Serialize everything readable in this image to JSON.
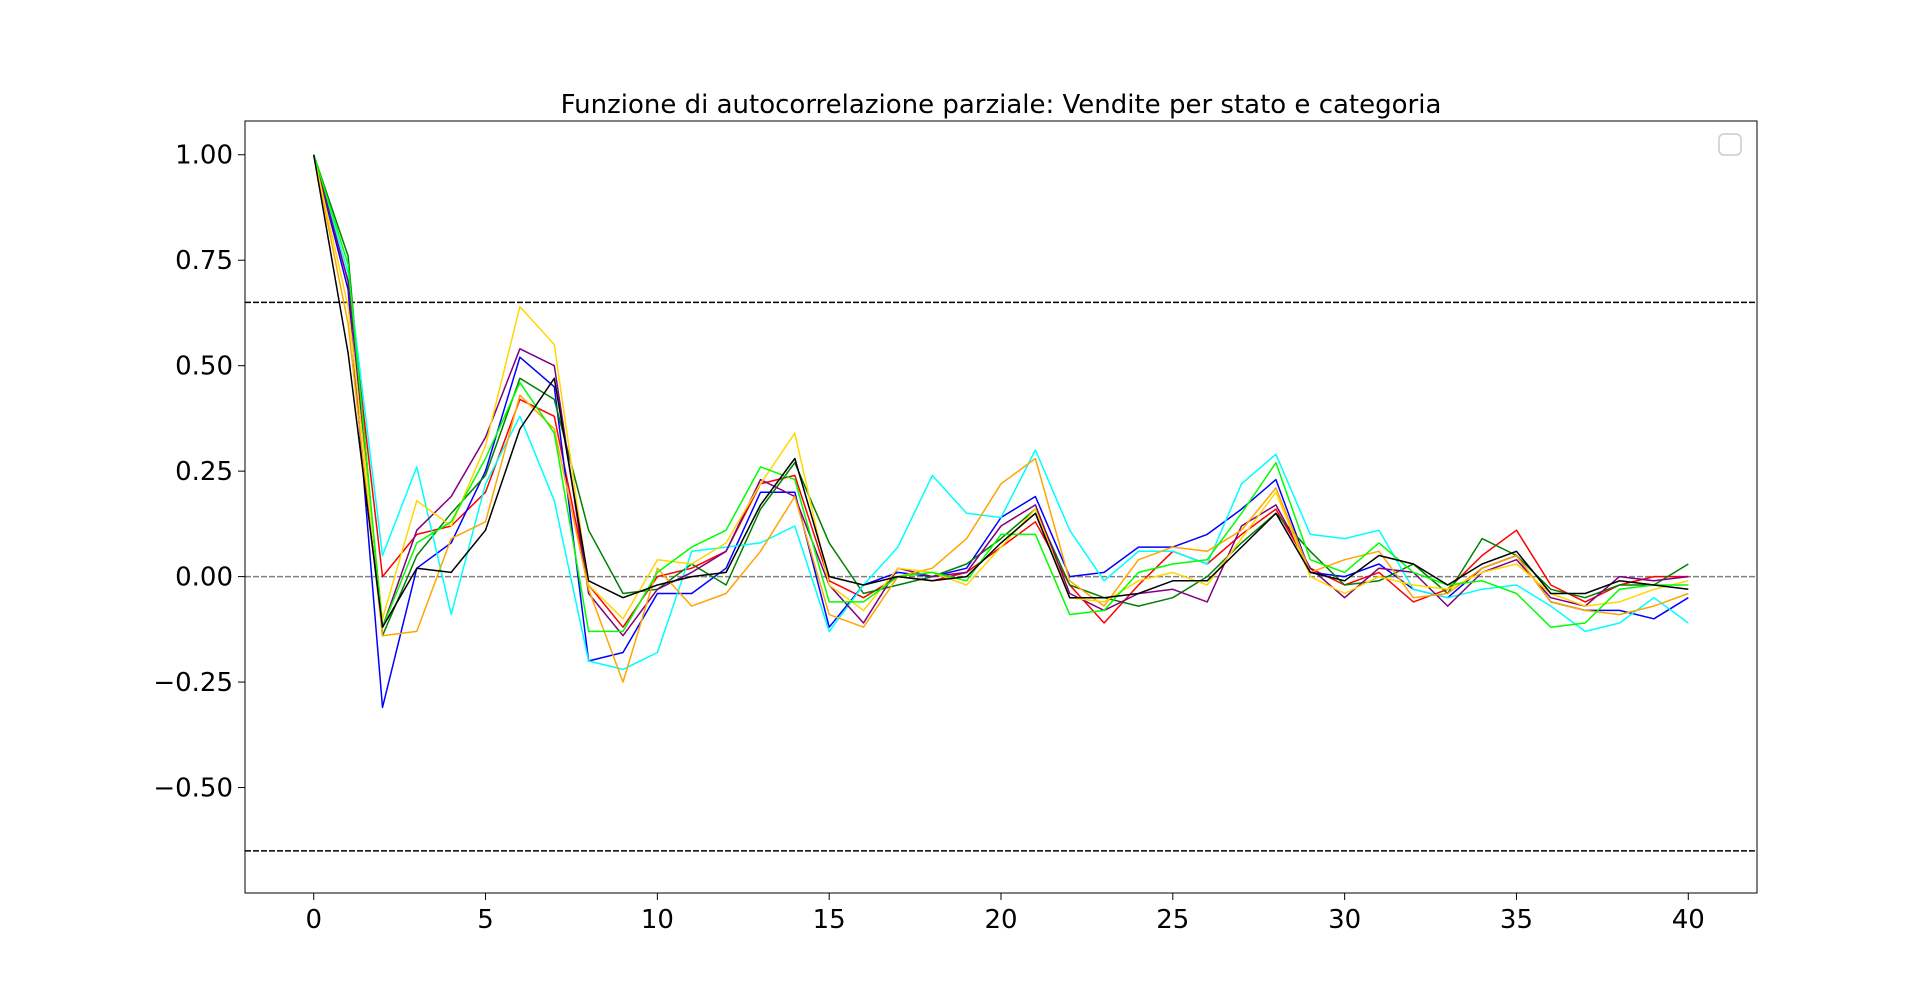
{
  "chart_data": {
    "type": "line",
    "title": "Funzione di autocorrelazione parziale: Vendite per stato e categoria",
    "xlabel": "",
    "ylabel": "",
    "xlim": [
      -2,
      42
    ],
    "ylim": [
      -0.75,
      1.08
    ],
    "xticks": [
      0,
      5,
      10,
      15,
      20,
      25,
      30,
      35,
      40
    ],
    "xtick_labels": [
      "0",
      "5",
      "10",
      "15",
      "20",
      "25",
      "30",
      "35",
      "40"
    ],
    "yticks": [
      1.0,
      0.75,
      0.5,
      0.25,
      0.0,
      -0.25,
      -0.5
    ],
    "ytick_labels": [
      "1.00",
      "0.75",
      "0.50",
      "0.25",
      "0.00",
      "−0.25",
      "−0.50"
    ],
    "grid": false,
    "legend": "top-right (empty)",
    "hlines": [
      {
        "y": 0.65,
        "style": "dashed",
        "color": "#000000"
      },
      {
        "y": -0.65,
        "style": "dashed",
        "color": "#000000"
      },
      {
        "y": 0.0,
        "style": "dashed",
        "color": "#808080"
      }
    ],
    "x": [
      0,
      1,
      2,
      3,
      4,
      5,
      6,
      7,
      8,
      9,
      10,
      11,
      12,
      13,
      14,
      15,
      16,
      17,
      18,
      19,
      20,
      21,
      22,
      23,
      24,
      25,
      26,
      27,
      28,
      29,
      30,
      31,
      32,
      33,
      34,
      35,
      36,
      37,
      38,
      39,
      40
    ],
    "series": [
      {
        "color": "#ff0000",
        "values": [
          1.0,
          0.7,
          0.0,
          0.1,
          0.12,
          0.2,
          0.42,
          0.38,
          -0.02,
          -0.12,
          0.0,
          0.02,
          0.06,
          0.22,
          0.24,
          -0.01,
          -0.05,
          0.0,
          -0.01,
          0.01,
          0.07,
          0.13,
          -0.02,
          -0.11,
          -0.02,
          0.06,
          0.03,
          0.1,
          0.16,
          0.02,
          -0.02,
          0.01,
          -0.06,
          -0.03,
          0.05,
          0.11,
          -0.02,
          -0.06,
          -0.02,
          0.0,
          0.0
        ]
      },
      {
        "color": "#0000ff",
        "values": [
          1.0,
          0.68,
          -0.31,
          0.02,
          0.08,
          0.25,
          0.52,
          0.45,
          -0.2,
          -0.18,
          -0.04,
          -0.04,
          0.02,
          0.2,
          0.2,
          -0.12,
          -0.02,
          0.01,
          0.0,
          0.02,
          0.14,
          0.19,
          0.0,
          0.01,
          0.07,
          0.07,
          0.1,
          0.16,
          0.23,
          0.01,
          0.0,
          0.03,
          -0.03,
          -0.05,
          0.02,
          0.05,
          -0.06,
          -0.08,
          -0.08,
          -0.1,
          -0.05
        ]
      },
      {
        "color": "#008000",
        "values": [
          1.0,
          0.76,
          -0.14,
          0.05,
          0.15,
          0.24,
          0.47,
          0.42,
          0.11,
          -0.04,
          -0.03,
          0.03,
          -0.02,
          0.16,
          0.27,
          0.08,
          -0.04,
          -0.02,
          0.0,
          0.03,
          0.09,
          0.16,
          -0.02,
          -0.05,
          -0.07,
          -0.05,
          0.0,
          0.08,
          0.15,
          0.06,
          -0.02,
          -0.01,
          0.03,
          -0.04,
          0.09,
          0.05,
          -0.03,
          -0.05,
          -0.02,
          -0.02,
          0.03
        ]
      },
      {
        "color": "#00ffff",
        "values": [
          1.0,
          0.72,
          0.05,
          0.26,
          -0.09,
          0.22,
          0.38,
          0.18,
          -0.2,
          -0.22,
          -0.18,
          0.06,
          0.07,
          0.08,
          0.12,
          -0.13,
          -0.02,
          0.07,
          0.24,
          0.15,
          0.14,
          0.3,
          0.11,
          -0.01,
          0.06,
          0.06,
          0.03,
          0.22,
          0.29,
          0.1,
          0.09,
          0.11,
          -0.03,
          -0.05,
          -0.03,
          -0.02,
          -0.07,
          -0.13,
          -0.11,
          -0.05,
          -0.11
        ]
      },
      {
        "color": "#800080",
        "values": [
          1.0,
          0.7,
          -0.12,
          0.11,
          0.19,
          0.33,
          0.54,
          0.5,
          -0.04,
          -0.14,
          -0.03,
          0.01,
          0.06,
          0.23,
          0.19,
          -0.02,
          -0.11,
          0.02,
          0.0,
          0.01,
          0.12,
          0.17,
          -0.04,
          -0.08,
          -0.04,
          -0.03,
          -0.06,
          0.12,
          0.17,
          0.02,
          -0.05,
          0.02,
          0.01,
          -0.07,
          0.01,
          0.04,
          -0.05,
          -0.07,
          0.0,
          -0.01,
          0.0
        ]
      },
      {
        "color": "#ffa500",
        "values": [
          1.0,
          0.6,
          -0.14,
          -0.13,
          0.09,
          0.13,
          0.43,
          0.35,
          -0.03,
          -0.25,
          0.02,
          -0.07,
          -0.04,
          0.06,
          0.19,
          -0.09,
          -0.12,
          0.0,
          0.02,
          0.09,
          0.22,
          0.28,
          -0.01,
          -0.07,
          0.04,
          0.07,
          0.06,
          0.11,
          0.21,
          0.01,
          0.04,
          0.06,
          -0.05,
          -0.04,
          0.02,
          0.05,
          -0.06,
          -0.08,
          -0.09,
          -0.07,
          -0.04
        ]
      },
      {
        "color": "#ffd700",
        "values": [
          1.0,
          0.64,
          -0.1,
          0.18,
          0.12,
          0.31,
          0.64,
          0.55,
          -0.02,
          -0.1,
          0.04,
          0.03,
          0.08,
          0.22,
          0.34,
          -0.02,
          -0.08,
          0.02,
          0.01,
          -0.02,
          0.07,
          0.16,
          -0.05,
          -0.06,
          -0.01,
          0.01,
          -0.02,
          0.09,
          0.2,
          0.0,
          -0.04,
          0.0,
          -0.02,
          -0.03,
          0.01,
          0.03,
          -0.04,
          -0.07,
          -0.06,
          -0.03,
          -0.01
        ]
      },
      {
        "color": "#00ff00",
        "values": [
          1.0,
          0.74,
          -0.12,
          0.08,
          0.13,
          0.28,
          0.46,
          0.34,
          -0.13,
          -0.13,
          0.01,
          0.07,
          0.11,
          0.26,
          0.23,
          -0.06,
          -0.06,
          0.0,
          0.01,
          -0.01,
          0.1,
          0.1,
          -0.09,
          -0.08,
          0.01,
          0.03,
          0.04,
          0.15,
          0.27,
          0.04,
          0.01,
          0.08,
          0.01,
          -0.02,
          -0.01,
          -0.04,
          -0.12,
          -0.11,
          -0.03,
          -0.02,
          -0.02
        ]
      },
      {
        "color": "#000000",
        "values": [
          1.0,
          0.53,
          -0.12,
          0.02,
          0.01,
          0.11,
          0.35,
          0.47,
          -0.01,
          -0.05,
          -0.02,
          0.0,
          0.01,
          0.17,
          0.28,
          0.0,
          -0.02,
          0.0,
          -0.01,
          0.0,
          0.08,
          0.15,
          -0.05,
          -0.05,
          -0.04,
          -0.01,
          -0.01,
          0.07,
          0.15,
          0.01,
          -0.01,
          0.05,
          0.03,
          -0.02,
          0.03,
          0.06,
          -0.04,
          -0.04,
          -0.01,
          -0.02,
          -0.03
        ]
      }
    ]
  }
}
